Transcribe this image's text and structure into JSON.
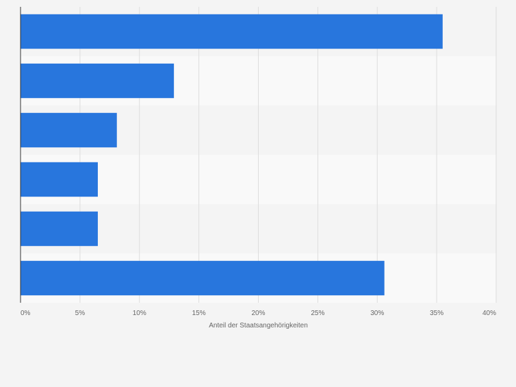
{
  "chart_data": {
    "type": "bar",
    "orientation": "horizontal",
    "categories": [
      "",
      "",
      "",
      "",
      "",
      ""
    ],
    "values": [
      35.5,
      12.9,
      8.1,
      6.5,
      6.5,
      30.6
    ],
    "title": "",
    "xlabel": "Anteil der Staatsangehörigkeiten",
    "ylabel": "",
    "xlim": [
      0,
      40
    ],
    "x_ticks": [
      0,
      5,
      10,
      15,
      20,
      25,
      30,
      35,
      40
    ],
    "x_tick_labels": [
      "0%",
      "5%",
      "10%",
      "15%",
      "20%",
      "25%",
      "30%",
      "35%",
      "40%"
    ],
    "grid": true,
    "bar_color": "#2876dd",
    "band_colors": [
      "#f4f4f4",
      "#f9f9f9"
    ],
    "grid_color": "#dddddd",
    "axis_color": "#333333"
  }
}
